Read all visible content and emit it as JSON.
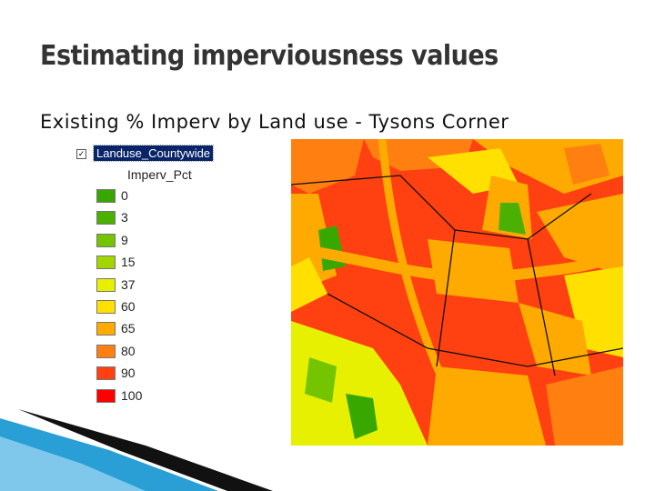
{
  "slide": {
    "title": "Estimating imperviousness values",
    "subtitle": "Existing % Imperv by Land use - Tysons Corner"
  },
  "legend": {
    "layer": "Landuse_Countywide",
    "field": "Imperv_Pct",
    "items": [
      {
        "label": 0,
        "color": "#38a800"
      },
      {
        "label": 3,
        "color": "#4cb000"
      },
      {
        "label": 9,
        "color": "#74c400"
      },
      {
        "label": 15,
        "color": "#a3d600"
      },
      {
        "label": 37,
        "color": "#e6f000"
      },
      {
        "label": 60,
        "color": "#ffe000"
      },
      {
        "label": 65,
        "color": "#ffaa00"
      },
      {
        "label": 80,
        "color": "#ff7f10"
      },
      {
        "label": 90,
        "color": "#ff4010"
      },
      {
        "label": 100,
        "color": "#ff0000"
      }
    ]
  }
}
